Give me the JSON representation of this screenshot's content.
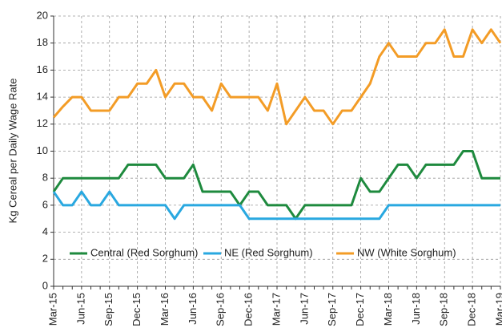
{
  "chart_data": {
    "type": "line",
    "y_label": "Kg Cereal per Daily Wage Rate",
    "categories": [
      "Mar-15",
      null,
      null,
      "Jun-15",
      null,
      null,
      "Sep-15",
      null,
      null,
      "Dec-15",
      null,
      null,
      "Mar-16",
      null,
      null,
      "Jun-16",
      null,
      null,
      "Sep-16",
      null,
      null,
      "Dec-16",
      null,
      null,
      "Mar-17",
      null,
      null,
      "Jun-17",
      null,
      null,
      "Sep-17",
      null,
      null,
      "Dec-17",
      null,
      null,
      "Mar-18",
      null,
      null,
      "Jun-18",
      null,
      null,
      "Sep-18",
      null,
      null,
      "Dec-18",
      null,
      null,
      "Mar-19"
    ],
    "series": [
      {
        "name": "Central (Red Sorghum)",
        "color": "#1e8a3e",
        "values": [
          7,
          8,
          8,
          8,
          8,
          8,
          8,
          8,
          9,
          9,
          9,
          9,
          8,
          8,
          8,
          9,
          7,
          7,
          7,
          7,
          6,
          7,
          7,
          6,
          6,
          6,
          5,
          6,
          6,
          6,
          6,
          6,
          6,
          8,
          7,
          7,
          8,
          9,
          9,
          8,
          9,
          9,
          9,
          9,
          10,
          10,
          8,
          8,
          8
        ]
      },
      {
        "name": "NE (Red Sorghum)",
        "color": "#29a8e0",
        "values": [
          7,
          6,
          6,
          7,
          6,
          6,
          7,
          6,
          6,
          6,
          6,
          6,
          6,
          5,
          6,
          6,
          6,
          6,
          6,
          6,
          6,
          5,
          5,
          5,
          5,
          5,
          5,
          5,
          5,
          5,
          5,
          5,
          5,
          5,
          5,
          5,
          6,
          6,
          6,
          6,
          6,
          6,
          6,
          6,
          6,
          6,
          6,
          6,
          6
        ]
      },
      {
        "name": "NW (White Sorghum)",
        "color": "#f39c26",
        "values": [
          12.5,
          13.3,
          14,
          14,
          13,
          13,
          13,
          14,
          14,
          15,
          15,
          16,
          14,
          15,
          15,
          14,
          14,
          13,
          15,
          14,
          14,
          14,
          14,
          13,
          15,
          12,
          13,
          14,
          13,
          13,
          12,
          13,
          13,
          14,
          15,
          17,
          18,
          17,
          17,
          17,
          18,
          18,
          19,
          17,
          17,
          19,
          18,
          19,
          18
        ]
      }
    ],
    "ylim": [
      0,
      20
    ],
    "yticks": [
      0,
      2,
      4,
      6,
      8,
      10,
      12,
      14,
      16,
      18,
      20
    ],
    "grid": true,
    "legend": "lower center"
  }
}
